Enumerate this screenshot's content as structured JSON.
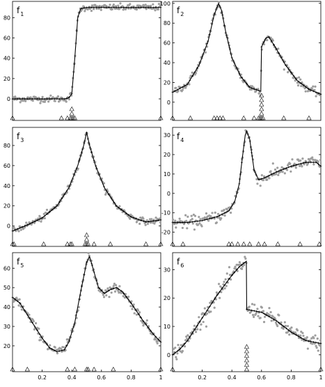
{
  "figure": {
    "background": "#ffffff",
    "axes_color": "#000000",
    "dot_color": "#9e9e9e",
    "fit_color": "#000000",
    "knot_color": "#000000"
  },
  "chart_data": [
    {
      "type": "scatter",
      "label": "f",
      "subscript": "1",
      "xlim": [
        0,
        1
      ],
      "ylim": [
        -13,
        96
      ],
      "yticks": [
        0,
        20,
        40,
        60,
        80
      ],
      "yticklabels": [
        "0",
        "20",
        "40",
        "60",
        "80"
      ],
      "xticks": [],
      "xticklabels": [],
      "noise": 1.6,
      "curve": [
        [
          0,
          0
        ],
        [
          0.35,
          0
        ],
        [
          0.38,
          1
        ],
        [
          0.4,
          5
        ],
        [
          0.42,
          40
        ],
        [
          0.44,
          80
        ],
        [
          0.46,
          89
        ],
        [
          0.5,
          90
        ],
        [
          1,
          90
        ]
      ],
      "knots": [
        0,
        0.33,
        0.37,
        0.39,
        0.4,
        0.41,
        0.42,
        1
      ],
      "knot_stacks": [
        [
          0.4,
          2
        ]
      ],
      "series": [
        {
          "values": "fit"
        },
        {
          "values": "observations"
        }
      ]
    },
    {
      "type": "scatter",
      "label": "f",
      "subscript": "2",
      "xlim": [
        0,
        1
      ],
      "ylim": [
        -10,
        102
      ],
      "yticks": [
        0,
        20,
        40,
        60,
        80,
        100
      ],
      "yticklabels": [
        "0",
        "20",
        "40",
        "60",
        "80",
        "100"
      ],
      "xticks": [],
      "xticklabels": [],
      "noise": 2.0,
      "curve": [
        [
          0,
          10
        ],
        [
          0.1,
          18
        ],
        [
          0.18,
          38
        ],
        [
          0.24,
          62
        ],
        [
          0.28,
          88
        ],
        [
          0.31,
          100
        ],
        [
          0.33,
          93
        ],
        [
          0.36,
          70
        ],
        [
          0.4,
          45
        ],
        [
          0.46,
          26
        ],
        [
          0.52,
          15
        ],
        [
          0.595,
          11
        ],
        [
          0.6,
          56
        ],
        [
          0.63,
          65
        ],
        [
          0.65,
          66
        ],
        [
          0.7,
          54
        ],
        [
          0.76,
          38
        ],
        [
          0.84,
          22
        ],
        [
          0.92,
          13
        ],
        [
          1,
          8
        ]
      ],
      "knots": [
        0,
        0.12,
        0.28,
        0.3,
        0.32,
        0.34,
        0.48,
        0.55,
        0.58,
        0.59,
        0.6,
        0.61,
        0.75,
        0.92
      ],
      "knot_stacks": [
        [
          0.6,
          5
        ]
      ],
      "series": [
        {
          "values": "fit"
        },
        {
          "values": "observations"
        }
      ]
    },
    {
      "type": "scatter",
      "label": "f",
      "subscript": "3",
      "xlim": [
        0,
        1
      ],
      "ylim": [
        -12,
        98
      ],
      "yticks": [
        0,
        20,
        40,
        60,
        80
      ],
      "yticklabels": [
        "0",
        "20",
        "40",
        "60",
        "80"
      ],
      "xticks": [],
      "xticklabels": [],
      "noise": 1.5,
      "curve": [
        [
          0,
          -5
        ],
        [
          0.1,
          1
        ],
        [
          0.2,
          8
        ],
        [
          0.3,
          20
        ],
        [
          0.38,
          38
        ],
        [
          0.44,
          60
        ],
        [
          0.48,
          80
        ],
        [
          0.5,
          93
        ],
        [
          0.52,
          80
        ],
        [
          0.56,
          60
        ],
        [
          0.62,
          38
        ],
        [
          0.7,
          20
        ],
        [
          0.8,
          9
        ],
        [
          0.9,
          4
        ],
        [
          1,
          6
        ]
      ],
      "knots": [
        0,
        0.01,
        0.21,
        0.37,
        0.39,
        0.4,
        0.49,
        0.5,
        0.51,
        0.55,
        0.66,
        0.9,
        1
      ],
      "knot_stacks": [
        [
          0.5,
          2
        ]
      ],
      "series": [
        {
          "values": "fit"
        },
        {
          "values": "observations"
        }
      ]
    },
    {
      "type": "scatter",
      "label": "f",
      "subscript": "4",
      "xlim": [
        0,
        1
      ],
      "ylim": [
        -23,
        34
      ],
      "yticks": [
        -20,
        -10,
        0,
        10,
        20,
        30
      ],
      "yticklabels": [
        "-20",
        "-10",
        "0",
        "10",
        "20",
        "30"
      ],
      "xticks": [],
      "xticklabels": [],
      "noise": 1.6,
      "curve": [
        [
          0,
          -15
        ],
        [
          0.1,
          -15
        ],
        [
          0.2,
          -14
        ],
        [
          0.3,
          -12
        ],
        [
          0.38,
          -9
        ],
        [
          0.42,
          -4
        ],
        [
          0.45,
          5
        ],
        [
          0.47,
          18
        ],
        [
          0.49,
          30
        ],
        [
          0.5,
          32
        ],
        [
          0.52,
          28
        ],
        [
          0.55,
          12
        ],
        [
          0.58,
          7
        ],
        [
          0.62,
          8
        ],
        [
          0.7,
          11
        ],
        [
          0.8,
          14
        ],
        [
          0.9,
          16
        ],
        [
          0.97,
          16
        ],
        [
          1,
          14
        ]
      ],
      "knots": [
        0,
        0.07,
        0.38,
        0.4,
        0.44,
        0.48,
        0.52,
        0.58,
        0.62,
        0.71,
        0.86,
        0.99
      ],
      "knot_stacks": [],
      "series": [
        {
          "values": "fit"
        },
        {
          "values": "observations"
        }
      ]
    },
    {
      "type": "scatter",
      "label": "f",
      "subscript": "5",
      "xlim": [
        0,
        1
      ],
      "ylim": [
        11,
        68
      ],
      "yticks": [
        20,
        30,
        40,
        50,
        60
      ],
      "yticklabels": [
        "20",
        "30",
        "40",
        "50",
        "60"
      ],
      "xticks": [
        0.2,
        0.4,
        0.6,
        0.8,
        1.0
      ],
      "xticklabels": [
        "0.2",
        "0.4",
        "0.6",
        "0.8",
        "1"
      ],
      "noise": 1.2,
      "curve": [
        [
          0,
          45
        ],
        [
          0.05,
          42
        ],
        [
          0.1,
          36
        ],
        [
          0.15,
          30
        ],
        [
          0.2,
          24
        ],
        [
          0.25,
          19
        ],
        [
          0.3,
          17
        ],
        [
          0.35,
          18
        ],
        [
          0.38,
          22
        ],
        [
          0.42,
          32
        ],
        [
          0.46,
          48
        ],
        [
          0.5,
          63
        ],
        [
          0.52,
          66
        ],
        [
          0.55,
          58
        ],
        [
          0.58,
          50
        ],
        [
          0.62,
          47
        ],
        [
          0.66,
          49
        ],
        [
          0.7,
          50
        ],
        [
          0.74,
          48
        ],
        [
          0.8,
          42
        ],
        [
          0.88,
          33
        ],
        [
          0.95,
          26
        ],
        [
          1,
          22
        ]
      ],
      "knots": [
        0,
        0.1,
        0.37,
        0.42,
        0.5,
        0.51,
        0.55,
        0.68,
        1
      ],
      "knot_stacks": [],
      "series": [
        {
          "values": "fit"
        },
        {
          "values": "observations"
        }
      ]
    },
    {
      "type": "scatter",
      "label": "f",
      "subscript": "6",
      "xlim": [
        0,
        1
      ],
      "ylim": [
        -3,
        36
      ],
      "yticks": [
        0,
        10,
        20,
        30
      ],
      "yticklabels": [
        "0",
        "10",
        "20",
        "30"
      ],
      "xticks": [
        0.2,
        0.4,
        0.6,
        0.8,
        1.0
      ],
      "xticklabels": [
        "0.2",
        "0.4",
        "0.6",
        "0.8",
        "1"
      ],
      "noise": 1.3,
      "curve": [
        [
          0,
          0
        ],
        [
          0.05,
          2
        ],
        [
          0.1,
          5
        ],
        [
          0.2,
          13
        ],
        [
          0.3,
          21
        ],
        [
          0.4,
          28
        ],
        [
          0.45,
          31
        ],
        [
          0.498,
          33
        ],
        [
          0.5,
          16
        ],
        [
          0.6,
          15
        ],
        [
          0.7,
          12
        ],
        [
          0.8,
          8
        ],
        [
          0.9,
          5
        ],
        [
          1,
          4
        ]
      ],
      "knots": [
        0,
        0.5,
        1
      ],
      "knot_stacks": [
        [
          0.5,
          5
        ]
      ],
      "series": [
        {
          "values": "fit"
        },
        {
          "values": "observations"
        }
      ]
    }
  ]
}
